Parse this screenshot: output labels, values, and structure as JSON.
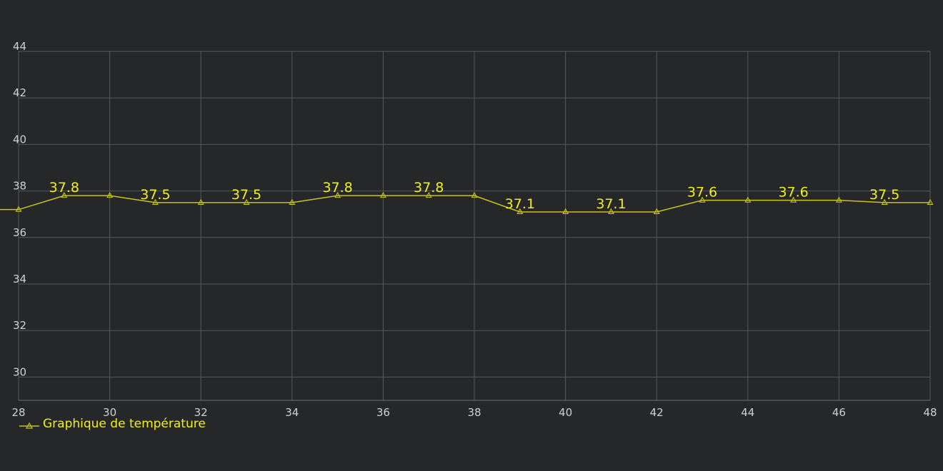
{
  "colors": {
    "background": "#262728",
    "grid": "#55575a",
    "series": "#c8c41a",
    "label": "#f1ee1f",
    "tick": "#cfd0d2"
  },
  "chart_data": {
    "type": "line",
    "x_ticks": [
      "28",
      "30",
      "32",
      "34",
      "36",
      "38",
      "40",
      "42",
      "44",
      "46",
      "48"
    ],
    "y_ticks": [
      "30",
      "32",
      "34",
      "36",
      "38",
      "40",
      "42",
      "44"
    ],
    "xlim": [
      28,
      48
    ],
    "ylim": [
      29,
      44
    ],
    "grid": true,
    "legend_placement": "bottom-left",
    "series": [
      {
        "name": "Graphique de température",
        "marker": "triangle-icon",
        "points": [
          {
            "x": 28,
            "y": 37.2
          },
          {
            "x": 29,
            "y": 37.8
          },
          {
            "x": 30,
            "y": 37.8
          },
          {
            "x": 31,
            "y": 37.5
          },
          {
            "x": 32,
            "y": 37.5
          },
          {
            "x": 33,
            "y": 37.5
          },
          {
            "x": 34,
            "y": 37.5
          },
          {
            "x": 35,
            "y": 37.8
          },
          {
            "x": 36,
            "y": 37.8
          },
          {
            "x": 37,
            "y": 37.8
          },
          {
            "x": 38,
            "y": 37.8
          },
          {
            "x": 39,
            "y": 37.1
          },
          {
            "x": 40,
            "y": 37.1
          },
          {
            "x": 41,
            "y": 37.1
          },
          {
            "x": 42,
            "y": 37.1
          },
          {
            "x": 43,
            "y": 37.6
          },
          {
            "x": 44,
            "y": 37.6
          },
          {
            "x": 45,
            "y": 37.6
          },
          {
            "x": 46,
            "y": 37.6
          },
          {
            "x": 47,
            "y": 37.5
          },
          {
            "x": 48,
            "y": 37.5
          }
        ],
        "data_labels": [
          {
            "x": 29,
            "y": 37.8,
            "text": "37.8"
          },
          {
            "x": 31,
            "y": 37.5,
            "text": "37.5"
          },
          {
            "x": 33,
            "y": 37.5,
            "text": "37.5"
          },
          {
            "x": 35,
            "y": 37.8,
            "text": "37.8"
          },
          {
            "x": 37,
            "y": 37.8,
            "text": "37.8"
          },
          {
            "x": 39,
            "y": 37.1,
            "text": "37.1"
          },
          {
            "x": 41,
            "y": 37.1,
            "text": "37.1"
          },
          {
            "x": 43,
            "y": 37.6,
            "text": "37.6"
          },
          {
            "x": 45,
            "y": 37.6,
            "text": "37.6"
          },
          {
            "x": 47,
            "y": 37.5,
            "text": "37.5"
          }
        ]
      }
    ]
  }
}
